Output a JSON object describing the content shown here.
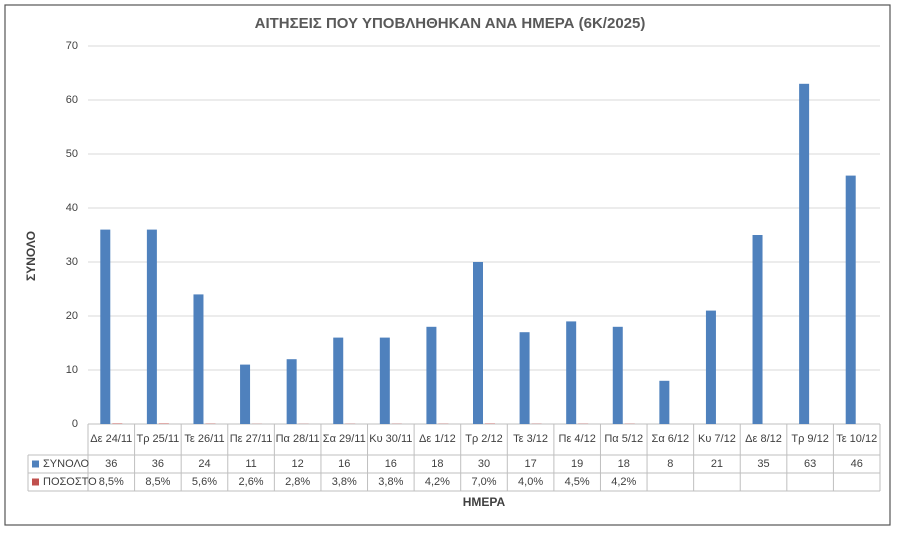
{
  "chart_data": {
    "type": "bar",
    "title": "ΑΙΤΗΣΕΙΣ ΠΟΥ ΥΠΟΒΛΗΘΗΚΑΝ ΑΝΑ ΗΜΕΡΑ (6Κ/2025)",
    "x_label": "ΗΜΕΡΑ",
    "y_label": "ΣΥΝΟΛΟ",
    "categories": [
      "Δε 24/11",
      "Τρ 25/11",
      "Τε 26/11",
      "Πε 27/11",
      "Πα 28/11",
      "Σα 29/11",
      "Κυ 30/11",
      "Δε 1/12",
      "Τρ 2/12",
      "Τε 3/12",
      "Πε 4/12",
      "Πα 5/12",
      "Σα 6/12",
      "Κυ 7/12",
      "Δε 8/12",
      "Τρ 9/12",
      "Τε 10/12"
    ],
    "series": [
      {
        "name": "ΣΥΝΟΛΟ",
        "color": "#4f81bd",
        "values": [
          36,
          36,
          24,
          11,
          12,
          16,
          16,
          18,
          30,
          17,
          19,
          18,
          8,
          21,
          35,
          63,
          46
        ]
      },
      {
        "name": "ΠΟΣΟΣΤΟ",
        "color": "#c0504d",
        "values": [
          0.085,
          0.085,
          0.056,
          0.026,
          0.028,
          0.038,
          0.038,
          0.042,
          0.07,
          0.04,
          0.045,
          0.042,
          null,
          null,
          null,
          null,
          null
        ],
        "value_labels": [
          "8,5%",
          "8,5%",
          "5,6%",
          "2,6%",
          "2,8%",
          "3,8%",
          "3,8%",
          "4,2%",
          "7,0%",
          "4,0%",
          "4,5%",
          "4,2%",
          null,
          null,
          null,
          null,
          null
        ]
      }
    ],
    "ylim": [
      0,
      70
    ],
    "yticks": [
      0,
      10,
      20,
      30,
      40,
      50,
      60,
      70
    ],
    "grid": true
  }
}
